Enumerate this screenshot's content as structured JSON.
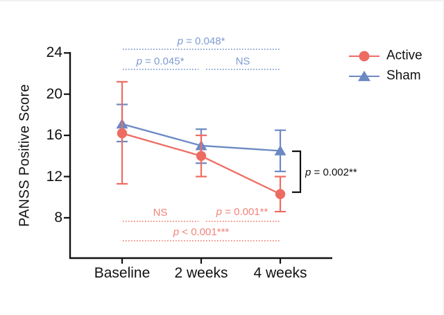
{
  "chart_data": {
    "type": "line",
    "title": "",
    "xlabel": "",
    "ylabel": "PANSS Positive Score",
    "categories": [
      "Baseline",
      "2 weeks",
      "4 weeks"
    ],
    "yticks": [
      24,
      20,
      16,
      12,
      8
    ],
    "ylim": [
      4,
      24
    ],
    "grid": false,
    "legend_position": "right",
    "error_bars": "shown",
    "series": [
      {
        "name": "Sham",
        "marker": "triangle",
        "color": "#6C89C4",
        "values": [
          17.1,
          15.0,
          14.5
        ],
        "err_low": [
          15.4,
          13.3,
          12.5
        ],
        "err_high": [
          19.0,
          16.6,
          16.5
        ]
      },
      {
        "name": "Active",
        "marker": "circle",
        "color": "#ED6C62",
        "values": [
          16.2,
          14.0,
          10.3
        ],
        "err_low": [
          11.3,
          12.0,
          8.6
        ],
        "err_high": [
          21.2,
          16.0,
          12.0
        ]
      }
    ],
    "annotations": {
      "sham_comparisons": [
        {
          "label": "p = 0.048*",
          "from": 0,
          "to": 2,
          "row": 0
        },
        {
          "label": "p = 0.045*",
          "from": 0,
          "to": 1,
          "row": 1
        },
        {
          "label": "NS",
          "from": 1,
          "to": 2,
          "row": 1
        }
      ],
      "active_comparisons": [
        {
          "label": "NS",
          "from": 0,
          "to": 1,
          "row": 0
        },
        {
          "label": "p = 0.001**",
          "from": 1,
          "to": 2,
          "row": 0
        },
        {
          "label": "p < 0.001***",
          "from": 0,
          "to": 2,
          "row": 1
        }
      ],
      "group_difference": {
        "label": "p = 0.002**",
        "at": "4 weeks"
      }
    },
    "colors": {
      "active": "#ED6C62",
      "sham": "#6C89C4",
      "active_annotation": "#F2837B",
      "sham_annotation": "#7E9AD1",
      "axis": "#111111"
    }
  },
  "legend": {
    "items": [
      {
        "label": "Active",
        "marker": "circle"
      },
      {
        "label": "Sham",
        "marker": "triangle"
      }
    ]
  }
}
